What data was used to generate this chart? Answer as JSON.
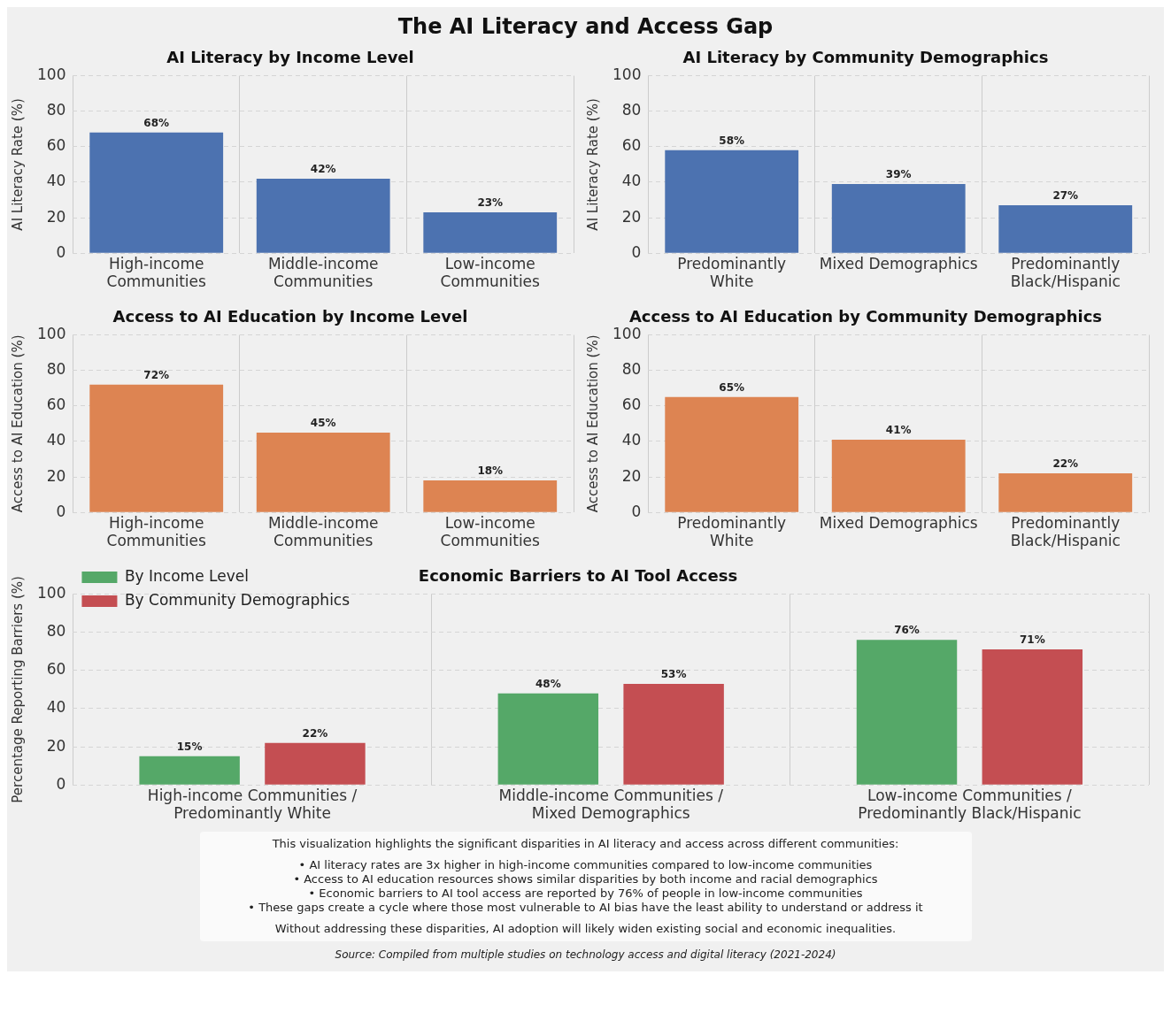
{
  "chart_data": [
    {
      "type": "bar",
      "title": "AI Literacy by Income Level",
      "ylabel": "AI Literacy Rate (%)",
      "annotations": [
        "The AI Literacy and Access Gap"
      ],
      "categories": [
        "High-income Communities",
        "Middle-income Communities",
        "Low-income Communities"
      ],
      "series": [
        {
          "color": "#4c72b0",
          "values": [
            68,
            42,
            23
          ],
          "value_labels": [
            "68%",
            "42%",
            "23%"
          ]
        }
      ],
      "ylim": [
        0,
        100
      ],
      "yticks": [
        0,
        20,
        40,
        60,
        80,
        100
      ],
      "grid": true,
      "legend": false
    },
    {
      "type": "bar",
      "title": "AI Literacy by Community Demographics",
      "ylabel": "AI Literacy Rate (%)",
      "categories": [
        "Predominantly White",
        "Mixed Demographics",
        "Predominantly Black/Hispanic"
      ],
      "series": [
        {
          "color": "#4c72b0",
          "values": [
            58,
            39,
            27
          ],
          "value_labels": [
            "58%",
            "39%",
            "27%"
          ]
        }
      ],
      "ylim": [
        0,
        100
      ],
      "yticks": [
        0,
        20,
        40,
        60,
        80,
        100
      ],
      "grid": true,
      "legend": false
    },
    {
      "type": "bar",
      "title": "Access to AI Education by Income Level",
      "ylabel": "Access to AI Education (%)",
      "categories": [
        "High-income Communities",
        "Middle-income Communities",
        "Low-income Communities"
      ],
      "series": [
        {
          "color": "#dd8452",
          "values": [
            72,
            45,
            18
          ],
          "value_labels": [
            "72%",
            "45%",
            "18%"
          ]
        }
      ],
      "ylim": [
        0,
        100
      ],
      "yticks": [
        0,
        20,
        40,
        60,
        80,
        100
      ],
      "grid": true,
      "legend": false
    },
    {
      "type": "bar",
      "title": "Access to AI Education by Community Demographics",
      "ylabel": "Access to AI Education (%)",
      "categories": [
        "Predominantly White",
        "Mixed Demographics",
        "Predominantly Black/Hispanic"
      ],
      "series": [
        {
          "color": "#dd8452",
          "values": [
            65,
            41,
            22
          ],
          "value_labels": [
            "65%",
            "41%",
            "22%"
          ]
        }
      ],
      "ylim": [
        0,
        100
      ],
      "yticks": [
        0,
        20,
        40,
        60,
        80,
        100
      ],
      "grid": true,
      "legend": false
    },
    {
      "type": "bar",
      "title": "Economic Barriers to AI Tool Access",
      "ylabel": "Percentage Reporting Barriers (%)",
      "categories": [
        "High-income Communities / Predominantly White",
        "Middle-income Communities / Mixed Demographics",
        "Low-income Communities / Predominantly Black/Hispanic"
      ],
      "series": [
        {
          "name": "By Income Level",
          "color": "#55a868",
          "values": [
            15,
            48,
            76
          ],
          "value_labels": [
            "15%",
            "48%",
            "76%"
          ]
        },
        {
          "name": "By Community Demographics",
          "color": "#c44e52",
          "values": [
            22,
            53,
            71
          ],
          "value_labels": [
            "22%",
            "53%",
            "71%"
          ]
        }
      ],
      "ylim": [
        0,
        100
      ],
      "yticks": [
        0,
        20,
        40,
        60,
        80,
        100
      ],
      "grid": true,
      "legend": "top left",
      "annotations": [
        "This visualization highlights the significant disparities in AI literacy and access across different communities:",
        "• AI literacy rates are 3x higher in high-income communities compared to low-income communities",
        "• Access to AI education resources shows similar disparities by both income and racial demographics",
        "• Economic barriers to AI tool access are reported by 76% of people in low-income communities",
        "• These gaps create a cycle where those most vulnerable to AI bias have the least ability to understand or address it",
        "Without addressing these disparities, AI adoption will likely widen existing social and economic inequalities.",
        "Source: Compiled from multiple studies on technology access and digital literacy (2021-2024)"
      ]
    }
  ]
}
